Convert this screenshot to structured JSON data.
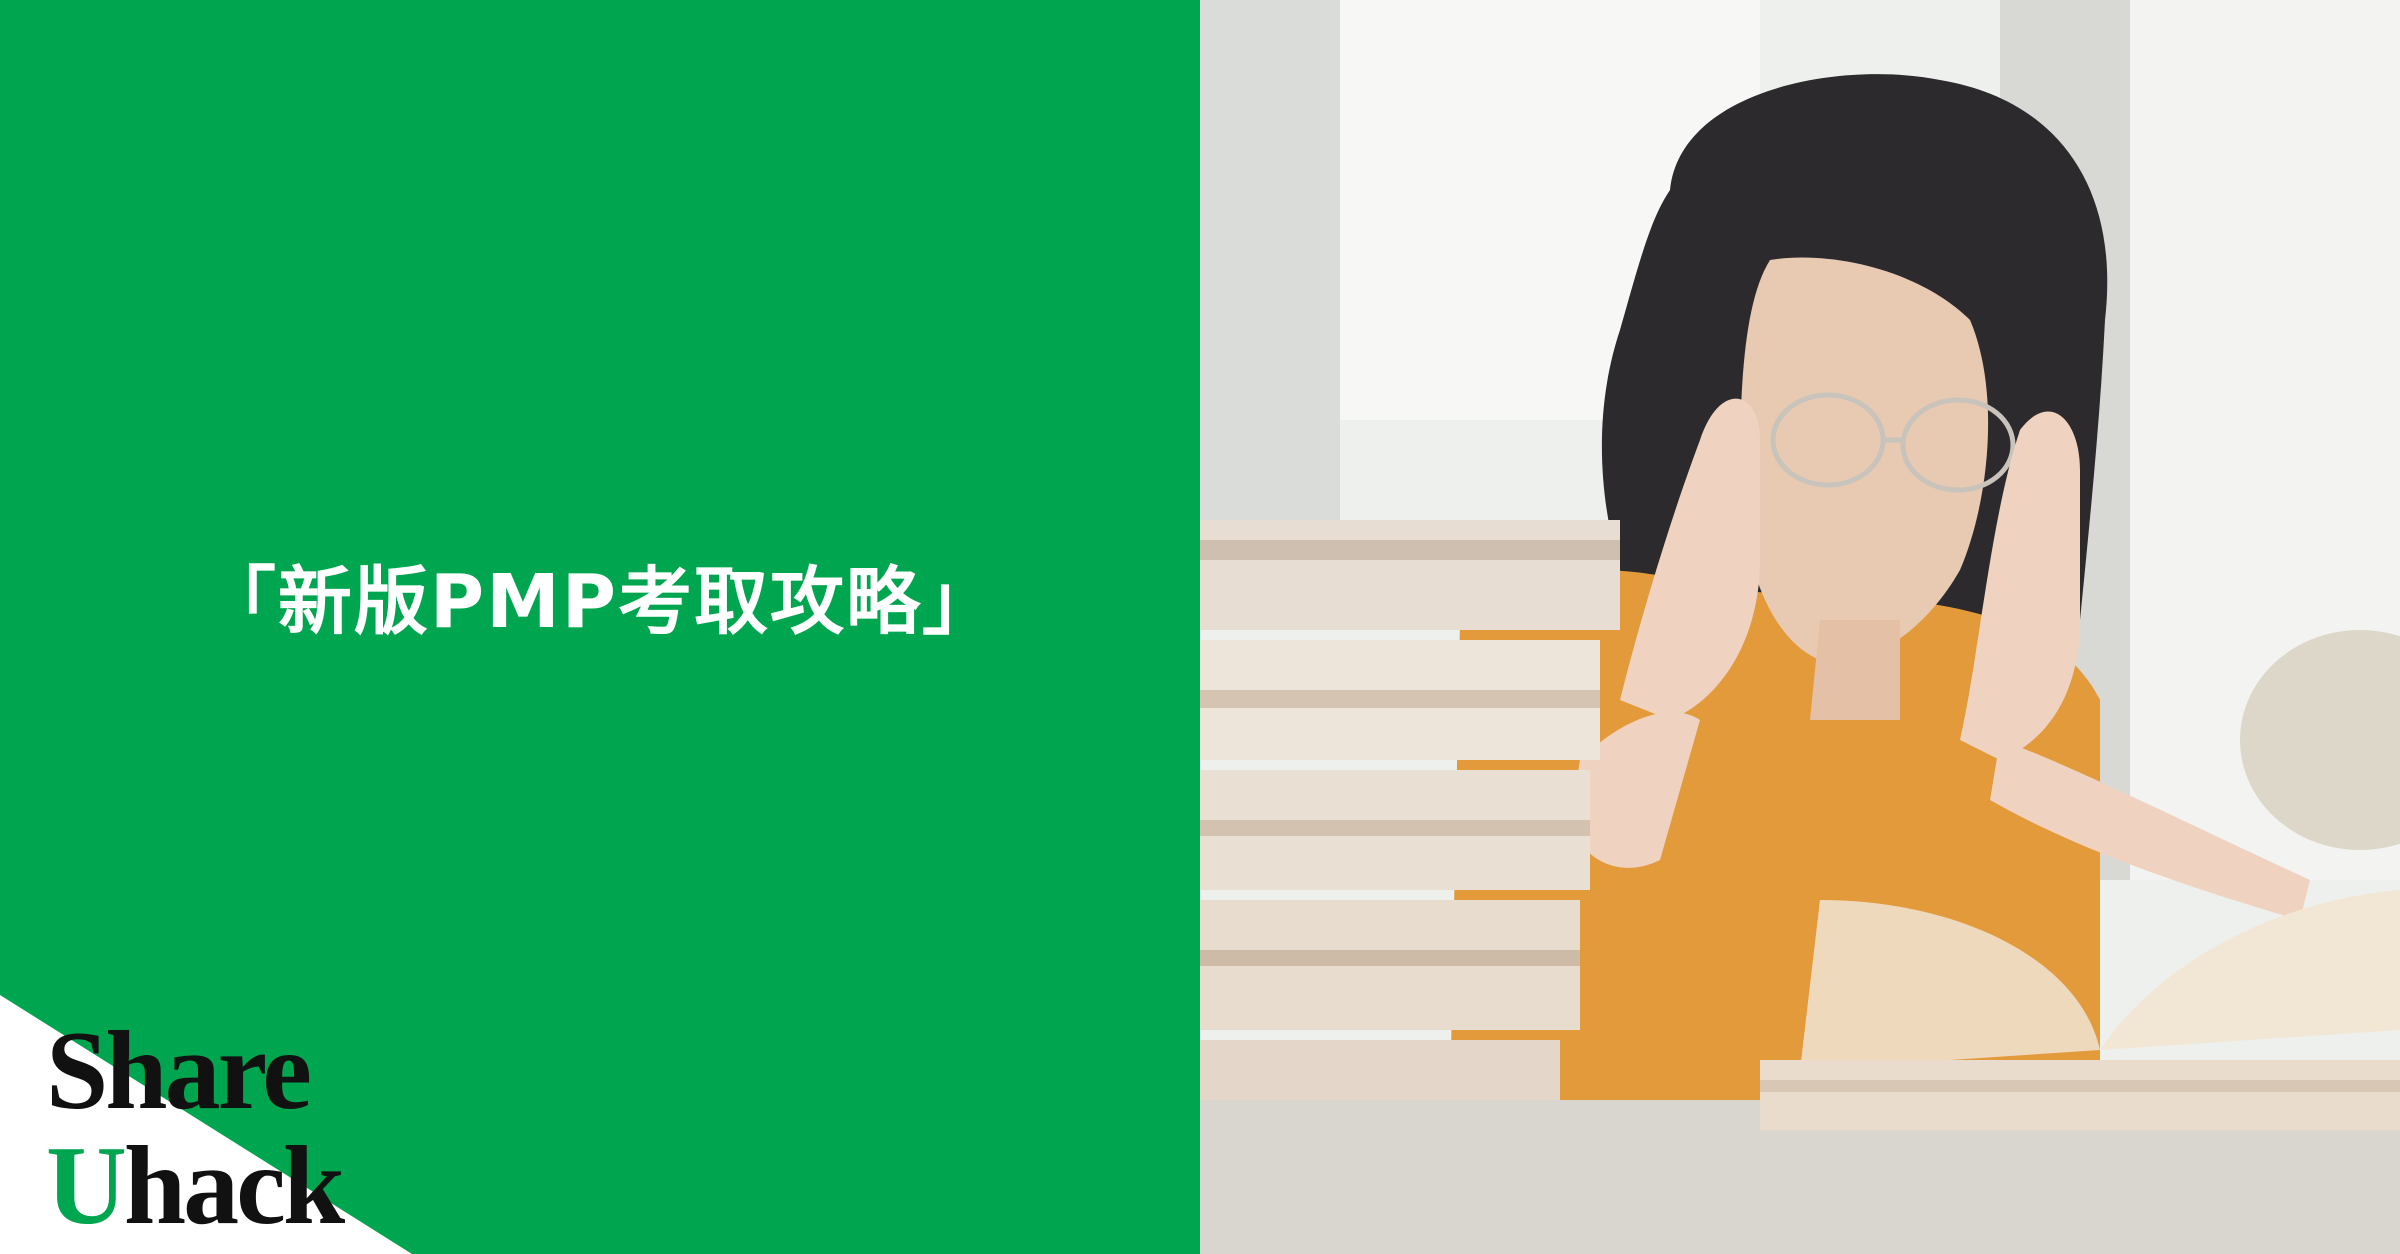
{
  "headline": "「新版PMP考取攻略」",
  "logo": {
    "line1": "Share",
    "line2": "Uhack",
    "line2_first": "U",
    "line2_rest": "hack",
    "line1_first": "S",
    "line1_rest": "hare"
  },
  "colors": {
    "brand_green": "#00a54f",
    "headline_text": "#ffffff",
    "logo_text": "#111111"
  },
  "photo": {
    "icon": "photo-woman-studying-with-books"
  }
}
